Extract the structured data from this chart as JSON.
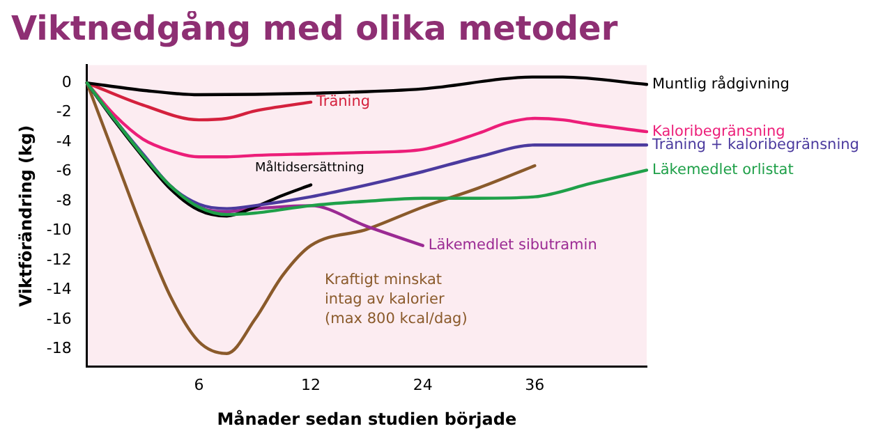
{
  "chart_data": {
    "type": "line",
    "title": "Viktnedgång med olika metoder",
    "xlabel": "Månader sedan studien började",
    "ylabel": "Viktförändring (kg)",
    "categories": [
      null,
      null,
      null,
      null,
      "6",
      null,
      null,
      null,
      "12",
      null,
      null,
      null,
      "24",
      null,
      null,
      null,
      "36",
      null,
      null,
      null,
      null
    ],
    "ylim": [
      -19.2,
      1.2
    ],
    "yticks": [
      0,
      -2,
      -4,
      -6,
      -8,
      -10,
      -12,
      -14,
      -16,
      -18
    ],
    "grid": false,
    "legend": false,
    "series": [
      {
        "name": "Muntlig rådgivning",
        "color": "#000000",
        "values": [
          0,
          null,
          -0.5,
          null,
          -0.8,
          null,
          null,
          null,
          -0.7,
          null,
          null,
          null,
          -0.4,
          null,
          null,
          null,
          0.4,
          0.4,
          null,
          null,
          -0.1
        ]
      },
      {
        "name": "Träning",
        "color": "#d4213d",
        "values": [
          0,
          null,
          -1.5,
          null,
          -2.5,
          -2.4,
          -1.9,
          null,
          -1.3,
          null,
          null,
          null,
          null,
          null,
          null,
          null,
          null,
          null,
          null,
          null,
          null
        ]
      },
      {
        "name": "Kaloribegränsning",
        "color": "#ec1e79",
        "values": [
          0,
          -2.2,
          -3.8,
          -4.6,
          -5,
          -5,
          -4.9,
          null,
          -4.8,
          null,
          -4.7,
          null,
          -4.5,
          null,
          -3.4,
          -2.7,
          -2.4,
          -2.5,
          -2.8,
          null,
          -3.3
        ]
      },
      {
        "name": "Träning + kaloribegränsning",
        "color": "#4b3a9e",
        "values": [
          0,
          -2.5,
          -4.8,
          -7,
          -8.2,
          -8.5,
          -8.3,
          null,
          -7.7,
          null,
          -6.9,
          null,
          -6,
          null,
          -5,
          null,
          -4.2,
          null,
          null,
          null,
          -4.2
        ]
      },
      {
        "name": "Måltidsersättning",
        "color": "#000000",
        "values": [
          0,
          -2.6,
          -5,
          -7.2,
          -8.6,
          -9,
          -8.4,
          -7.6,
          -6.9,
          null,
          null,
          null,
          null,
          null,
          null,
          null,
          null,
          null,
          null,
          null,
          null
        ]
      },
      {
        "name": "Läkemedlet orlistat",
        "color": "#1fa049",
        "values": [
          0,
          -2.5,
          -4.9,
          -7,
          -8.4,
          -8.9,
          -8.8,
          null,
          -8.3,
          null,
          -8,
          null,
          -7.8,
          null,
          -7.8,
          null,
          -7.7,
          null,
          -6.8,
          null,
          -5.9
        ]
      },
      {
        "name": "Läkemedlet sibutramin",
        "color": "#9b2a93",
        "values": [
          0,
          -2.5,
          -4.9,
          -7,
          -8.4,
          -8.7,
          -8.5,
          null,
          -8.3,
          null,
          -9.7,
          null,
          -11,
          null,
          null,
          null,
          null,
          null,
          null,
          null,
          null
        ]
      },
      {
        "name": "Kraftigt minskat\nintag av kalorier\n(max 800 kcal/dag)",
        "color": "#8a5a2b",
        "values": [
          0,
          -5,
          -10,
          -14.5,
          -17.5,
          -18.3,
          -16,
          -13,
          -11,
          null,
          -9.9,
          null,
          -8.4,
          null,
          -7.1,
          null,
          -5.6,
          null,
          null,
          null,
          null
        ]
      }
    ]
  }
}
